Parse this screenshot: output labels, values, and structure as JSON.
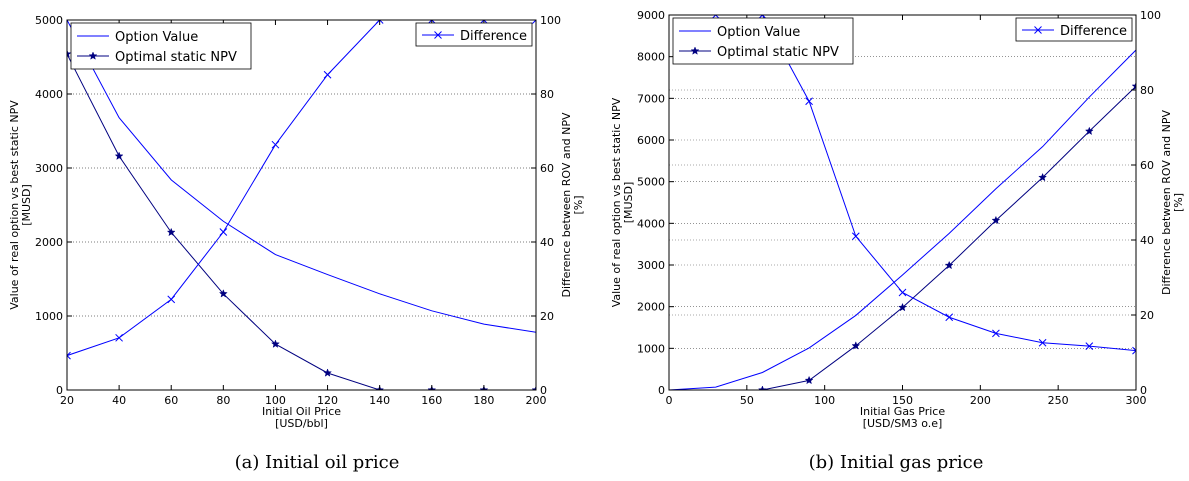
{
  "chart_data": [
    {
      "type": "line",
      "caption": "(a) Initial oil price",
      "xlabel": [
        "Initial Oil Price",
        "[USD/bbl]"
      ],
      "ylabel_left": [
        "Value of real option vs best static NPV",
        "[MUSD]"
      ],
      "ylabel_right": [
        "Difference between ROV and NPV",
        "[%]"
      ],
      "xlim": [
        20,
        200
      ],
      "ylim_left": [
        0,
        5000
      ],
      "ylim_right": [
        0,
        100
      ],
      "xticks": [
        20,
        40,
        60,
        80,
        100,
        120,
        140,
        160,
        180,
        200
      ],
      "yticks_left": [
        0,
        1000,
        2000,
        3000,
        4000,
        5000
      ],
      "yticks_right": [
        0,
        20,
        40,
        60,
        80,
        100
      ],
      "grid": "horizontal-dotted",
      "legend_left": "top-left",
      "legend_right": "top-right",
      "series": [
        {
          "name": "Option Value",
          "axis": "left",
          "marker": "none",
          "color": "#0000ff",
          "x": [
            20,
            40,
            60,
            80,
            100,
            120,
            140,
            160,
            180,
            200
          ],
          "y": [
            5000,
            3680,
            2840,
            2280,
            1830,
            1560,
            1300,
            1070,
            890,
            780
          ]
        },
        {
          "name": "Optimal static NPV",
          "axis": "left",
          "marker": "star",
          "color": "#000080",
          "x": [
            20,
            40,
            60,
            80,
            100,
            120,
            140,
            160,
            180,
            200
          ],
          "y": [
            4540,
            3160,
            2130,
            1300,
            620,
            230,
            0,
            0,
            0,
            0
          ]
        },
        {
          "name": "Difference",
          "axis": "right",
          "marker": "x",
          "color": "#0000ff",
          "x": [
            20,
            40,
            60,
            80,
            100,
            120,
            140,
            160,
            180,
            200
          ],
          "y": [
            9.3,
            14.1,
            24.5,
            42.7,
            66.3,
            85.2,
            100,
            100,
            100,
            100
          ]
        }
      ]
    },
    {
      "type": "line",
      "caption": "(b) Initial gas price",
      "xlabel": [
        "Initial Gas Price",
        "[USD/SM3 o.e]"
      ],
      "ylabel_left": [
        "Value of real option vs best static NPV",
        "[MUSD]"
      ],
      "ylabel_right": [
        "Difference between ROV and NPV",
        "[%]"
      ],
      "xlim": [
        0,
        300
      ],
      "ylim_left": [
        0,
        9000
      ],
      "ylim_right": [
        0,
        100
      ],
      "xticks": [
        0,
        50,
        100,
        150,
        200,
        250,
        300
      ],
      "yticks_left": [
        0,
        1000,
        2000,
        3000,
        4000,
        5000,
        6000,
        7000,
        8000,
        9000
      ],
      "yticks_right": [
        0,
        20,
        40,
        60,
        80,
        100
      ],
      "grid": "horizontal-dotted",
      "legend_left": "top-left",
      "legend_right": "top-right",
      "series": [
        {
          "name": "Option Value",
          "axis": "left",
          "marker": "none",
          "color": "#0000ff",
          "x": [
            0,
            30,
            60,
            90,
            120,
            150,
            180,
            210,
            240,
            270,
            300
          ],
          "y": [
            0,
            70,
            420,
            1010,
            1790,
            2760,
            3760,
            4830,
            5840,
            7030,
            8160
          ]
        },
        {
          "name": "Optimal static NPV",
          "axis": "left",
          "marker": "star",
          "color": "#000080",
          "x": [
            60,
            90,
            120,
            150,
            180,
            210,
            240,
            270,
            300
          ],
          "y": [
            0,
            230,
            1060,
            1980,
            2990,
            4070,
            5100,
            6210,
            7290
          ]
        },
        {
          "name": "Difference",
          "axis": "right",
          "marker": "x",
          "color": "#0000ff",
          "x": [
            30,
            60,
            90,
            120,
            150,
            180,
            210,
            240,
            270,
            300
          ],
          "y": [
            100,
            100,
            77,
            41,
            26,
            19.4,
            15.1,
            12.6,
            11.7,
            10.5
          ]
        }
      ]
    }
  ]
}
